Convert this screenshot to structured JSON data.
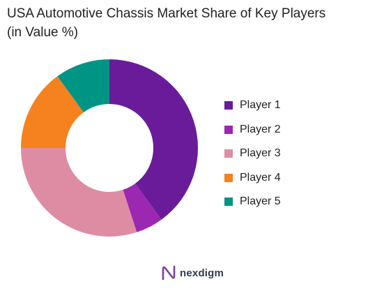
{
  "title": {
    "line1": "USA Automotive Chassis Market Share of Key Players",
    "line2": "(in Value %)"
  },
  "chart_data": {
    "type": "pie",
    "variant": "donut",
    "title": "USA Automotive Chassis Market Share of Key Players (in Value %)",
    "categories": [
      "Player 1",
      "Player 2",
      "Player 3",
      "Player 4",
      "Player 5"
    ],
    "values": [
      40,
      5,
      30,
      15,
      10
    ],
    "colors": [
      "#6a1b9a",
      "#9c27b0",
      "#de8ca4",
      "#f5821f",
      "#009485"
    ],
    "start_angle": "12 o'clock",
    "direction": "clockwise",
    "legend_position": "right"
  },
  "brand": {
    "name": "nexdigm",
    "logo_color": "#7b3fa0"
  }
}
